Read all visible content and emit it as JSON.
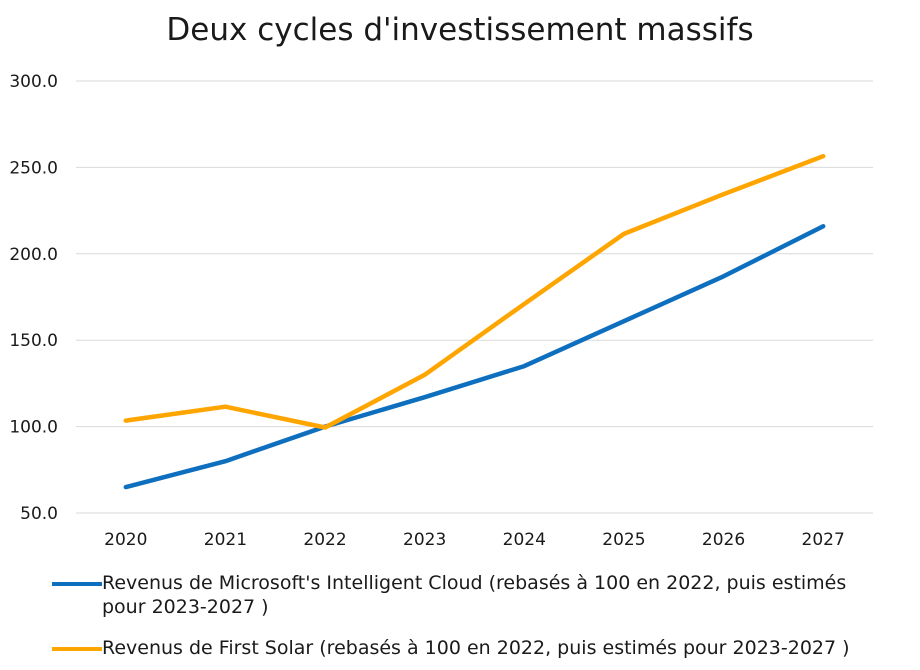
{
  "chart_data": {
    "type": "line",
    "title": "Deux cycles d'investissement massifs",
    "xlabel": "",
    "ylabel": "",
    "categories": [
      "2020",
      "2021",
      "2022",
      "2023",
      "2024",
      "2025",
      "2026",
      "2027"
    ],
    "ylim": [
      50,
      300
    ],
    "yticks": [
      "50.0",
      "100.0",
      "150.0",
      "200.0",
      "250.0",
      "300.0"
    ],
    "grid": true,
    "legend_position": "bottom",
    "series": [
      {
        "name": "Revenus de Microsoft's Intelligent Cloud (rebasés à 100 en 2022, puis estimés pour  2023-2027 )",
        "color": "#0F6FBF",
        "values": [
          65,
          80,
          100,
          117,
          135,
          161,
          187,
          216
        ]
      },
      {
        "name": "Revenus de First Solar (rebasés à 100 en 2022, puis estimés pour  2023-2027 )",
        "color": "#FFA500",
        "values": [
          103.5,
          111.5,
          99.5,
          130,
          171,
          211.5,
          234.5,
          256.5
        ]
      }
    ]
  }
}
